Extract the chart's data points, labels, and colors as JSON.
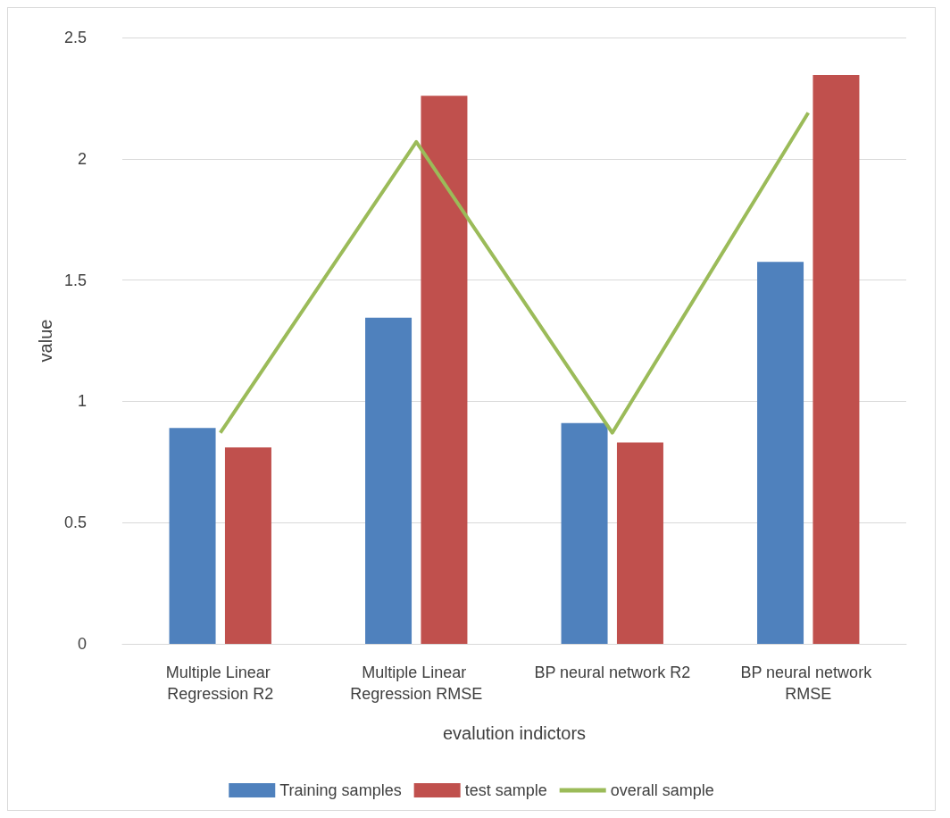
{
  "chart_data": {
    "type": "bar",
    "xlabel": "evalution indictors",
    "ylabel": "value",
    "categories": [
      "Multiple Linear Regression R2",
      "Multiple Linear Regression RMSE",
      "BP neural network R2",
      "BP neural network RMSE"
    ],
    "series": [
      {
        "name": "Training samples",
        "color": "#4f81bd",
        "values": [
          0.89,
          1.345,
          0.91,
          1.575
        ]
      },
      {
        "name": "test sample",
        "color": "#c0504d",
        "values": [
          0.81,
          2.26,
          0.83,
          2.345
        ]
      },
      {
        "name": "overall sample",
        "type": "line",
        "color": "#9bbb59",
        "values": [
          0.87,
          2.07,
          0.87,
          2.19
        ],
        "marker": "none"
      }
    ],
    "ylim": [
      0,
      2.5
    ],
    "yticks": [
      0,
      0.5,
      1,
      1.5,
      2,
      2.5
    ],
    "grid": "y",
    "legend": "bottom"
  }
}
